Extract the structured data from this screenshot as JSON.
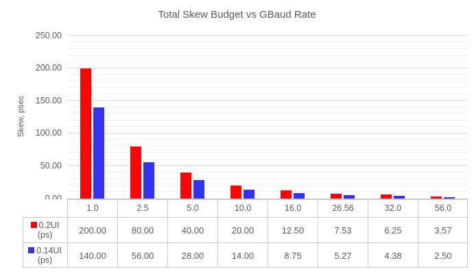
{
  "chart_data": {
    "type": "bar",
    "title": "Total Skew Budget vs GBaud Rate",
    "xlabel": "",
    "ylabel": "Skew, psec",
    "ylim": [
      0,
      250
    ],
    "ytick_step": 50,
    "minor_step": 10,
    "ytick_labels": [
      "0.00",
      "50.00",
      "100.00",
      "150.00",
      "200.00",
      "250.00"
    ],
    "grid": "horizontal major and minor gridlines",
    "legend_position": "table rows below chart",
    "categories": [
      "1.0",
      "2.5",
      "5.0",
      "10.0",
      "16.0",
      "26.56",
      "32.0",
      "56.0"
    ],
    "series": [
      {
        "name": "0.2UI (ps)",
        "legend_line1": "0.2UI",
        "legend_line2": "(ps)",
        "color": "#fd0404",
        "values": [
          200.0,
          80.0,
          40.0,
          20.0,
          12.5,
          7.53,
          6.25,
          3.57
        ]
      },
      {
        "name": "0.14UI (ps)",
        "legend_line1": "0.14UI",
        "legend_line2": "(ps)",
        "color": "#3232f0",
        "values": [
          140.0,
          56.0,
          28.0,
          14.0,
          8.75,
          5.27,
          4.38,
          2.5
        ]
      }
    ]
  },
  "colors": {
    "series_red": "#fd0404",
    "series_blue": "#3232f0",
    "text": "#595959",
    "grid_major": "#d9d9d9",
    "grid_minor": "#f0f0f0",
    "axis_line": "#c9c9c9",
    "table_border": "#c6c6ce",
    "background": "#ffffff"
  }
}
